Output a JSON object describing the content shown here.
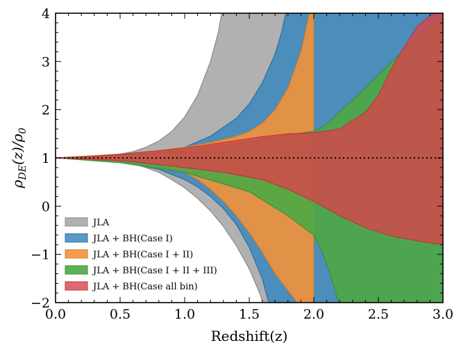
{
  "chart_data": {
    "type": "area",
    "xlabel": "Redshift(z)",
    "ylabel": "ρDE(z)/ρ0",
    "ylabel_parts": {
      "base": "ρ",
      "base_sub": "DE",
      "mid": "(z)/ρ",
      "den_sub": "0"
    },
    "xlim": [
      0.0,
      3.0
    ],
    "ylim": [
      -2,
      4
    ],
    "xticks": [
      0.0,
      0.5,
      1.0,
      1.5,
      2.0,
      2.5,
      3.0
    ],
    "xtick_labels": [
      "0.0",
      "0.5",
      "1.0",
      "1.5",
      "2.0",
      "2.5",
      "3.0"
    ],
    "yticks": [
      -2,
      -1,
      0,
      1,
      2,
      3,
      4
    ],
    "ytick_labels": [
      "−2",
      "−1",
      "0",
      "1",
      "2",
      "3",
      "4"
    ],
    "reference_line": {
      "y": 1,
      "style": "dotted",
      "color": "#000000"
    },
    "legend_position": "lower-left",
    "series": [
      {
        "name": "JLA",
        "color": "#a9a9a9",
        "edge": "#8a8a8a",
        "opacity": 0.9,
        "upper": [
          [
            0,
            1
          ],
          [
            0.3,
            1.02
          ],
          [
            0.5,
            1.08
          ],
          [
            0.6,
            1.13
          ],
          [
            0.7,
            1.22
          ],
          [
            0.8,
            1.35
          ],
          [
            0.9,
            1.55
          ],
          [
            1.0,
            1.85
          ],
          [
            1.1,
            2.3
          ],
          [
            1.2,
            3.0
          ],
          [
            1.26,
            3.6
          ],
          [
            1.3,
            4.2
          ],
          [
            3.0,
            4.2
          ]
        ],
        "lower": [
          [
            0,
            1
          ],
          [
            0.3,
            0.98
          ],
          [
            0.5,
            0.93
          ],
          [
            0.6,
            0.88
          ],
          [
            0.7,
            0.8
          ],
          [
            0.8,
            0.7
          ],
          [
            0.9,
            0.55
          ],
          [
            1.0,
            0.38
          ],
          [
            1.1,
            0.16
          ],
          [
            1.2,
            -0.1
          ],
          [
            1.3,
            -0.42
          ],
          [
            1.4,
            -0.82
          ],
          [
            1.5,
            -1.3
          ],
          [
            1.58,
            -1.8
          ],
          [
            1.62,
            -2.1
          ],
          [
            3.0,
            -2.1
          ]
        ]
      },
      {
        "name": "JLA + BH(Case I)",
        "color": "#3a87bd",
        "edge": "#2c6e9f",
        "opacity": 0.85,
        "upper": [
          [
            0,
            1
          ],
          [
            0.5,
            1.05
          ],
          [
            0.8,
            1.12
          ],
          [
            1.0,
            1.22
          ],
          [
            1.2,
            1.45
          ],
          [
            1.4,
            1.82
          ],
          [
            1.5,
            2.12
          ],
          [
            1.6,
            2.55
          ],
          [
            1.7,
            3.15
          ],
          [
            1.75,
            3.6
          ],
          [
            1.8,
            4.2
          ],
          [
            3.0,
            4.2
          ]
        ],
        "lower": [
          [
            0,
            1
          ],
          [
            0.5,
            0.93
          ],
          [
            0.8,
            0.76
          ],
          [
            1.0,
            0.55
          ],
          [
            1.1,
            0.4
          ],
          [
            1.2,
            0.2
          ],
          [
            1.3,
            -0.05
          ],
          [
            1.4,
            -0.38
          ],
          [
            1.5,
            -0.85
          ],
          [
            1.6,
            -1.5
          ],
          [
            1.66,
            -2.1
          ],
          [
            3.0,
            -2.1
          ]
        ]
      },
      {
        "name": "JLA + BH(Case I + II)",
        "color": "#f2923a",
        "edge": "#cc7a30",
        "opacity": 0.9,
        "upper": [
          [
            0,
            1
          ],
          [
            0.5,
            1.08
          ],
          [
            0.8,
            1.15
          ],
          [
            1.0,
            1.22
          ],
          [
            1.2,
            1.32
          ],
          [
            1.4,
            1.45
          ],
          [
            1.5,
            1.55
          ],
          [
            1.6,
            1.72
          ],
          [
            1.7,
            2.0
          ],
          [
            1.8,
            2.45
          ],
          [
            1.9,
            3.2
          ],
          [
            1.95,
            3.8
          ],
          [
            1.98,
            4.2
          ],
          [
            2.0,
            4.2
          ],
          [
            2.0,
            -2.1
          ]
        ],
        "lower": [
          [
            0,
            1
          ],
          [
            0.5,
            0.96
          ],
          [
            0.8,
            0.85
          ],
          [
            1.0,
            0.7
          ],
          [
            1.1,
            0.55
          ],
          [
            1.2,
            0.35
          ],
          [
            1.3,
            0.1
          ],
          [
            1.4,
            -0.2
          ],
          [
            1.5,
            -0.55
          ],
          [
            1.6,
            -0.95
          ],
          [
            1.7,
            -1.4
          ],
          [
            1.8,
            -1.75
          ],
          [
            1.9,
            -2.1
          ],
          [
            2.0,
            -2.1
          ]
        ]
      },
      {
        "name": "JLA + BH(Case I + II + III)",
        "color": "#4ea844",
        "edge": "#3f8e37",
        "opacity": 0.9,
        "upper": [
          [
            0,
            1
          ],
          [
            0.5,
            1.05
          ],
          [
            1.0,
            1.15
          ],
          [
            1.5,
            1.35
          ],
          [
            1.8,
            1.48
          ],
          [
            2.0,
            1.55
          ],
          [
            2.1,
            1.7
          ],
          [
            2.2,
            1.95
          ],
          [
            2.3,
            2.2
          ],
          [
            2.4,
            2.45
          ],
          [
            2.5,
            2.72
          ],
          [
            2.6,
            2.98
          ],
          [
            2.7,
            3.25
          ],
          [
            2.8,
            3.5
          ],
          [
            2.9,
            3.75
          ],
          [
            3.0,
            3.9
          ]
        ],
        "lower": [
          [
            0,
            1
          ],
          [
            0.5,
            0.9
          ],
          [
            1.0,
            0.7
          ],
          [
            1.5,
            0.3
          ],
          [
            1.8,
            -0.2
          ],
          [
            2.0,
            -0.6
          ],
          [
            2.05,
            -0.85
          ],
          [
            2.1,
            -1.2
          ],
          [
            2.15,
            -1.6
          ],
          [
            2.2,
            -2.1
          ],
          [
            3.0,
            -2.1
          ]
        ]
      },
      {
        "name": "JLA + BH(Case all bin)",
        "color": "#d9434a",
        "edge": "#b8393f",
        "opacity": 0.8,
        "upper": [
          [
            0,
            1
          ],
          [
            0.3,
            1.03
          ],
          [
            0.6,
            1.1
          ],
          [
            1.0,
            1.2
          ],
          [
            1.3,
            1.32
          ],
          [
            1.6,
            1.44
          ],
          [
            1.8,
            1.5
          ],
          [
            2.0,
            1.52
          ],
          [
            2.2,
            1.6
          ],
          [
            2.4,
            1.95
          ],
          [
            2.5,
            2.3
          ],
          [
            2.6,
            2.85
          ],
          [
            2.7,
            3.3
          ],
          [
            2.8,
            3.72
          ],
          [
            2.9,
            3.95
          ],
          [
            3.0,
            4.05
          ]
        ],
        "lower": [
          [
            0,
            1
          ],
          [
            0.3,
            0.97
          ],
          [
            0.6,
            0.92
          ],
          [
            1.0,
            0.8
          ],
          [
            1.3,
            0.7
          ],
          [
            1.6,
            0.55
          ],
          [
            1.8,
            0.35
          ],
          [
            2.0,
            0.1
          ],
          [
            2.2,
            -0.2
          ],
          [
            2.4,
            -0.45
          ],
          [
            2.6,
            -0.62
          ],
          [
            2.8,
            -0.72
          ],
          [
            3.0,
            -0.8
          ]
        ]
      }
    ]
  }
}
